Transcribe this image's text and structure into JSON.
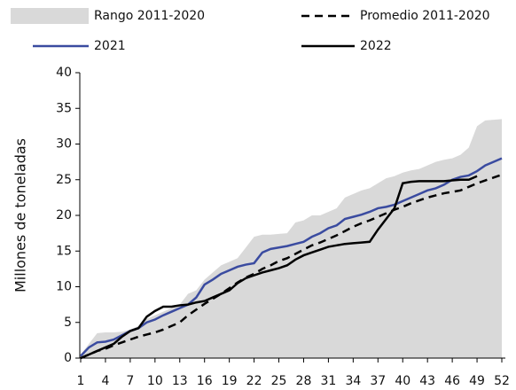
{
  "chart_data": {
    "type": "line",
    "y_label": "Millones de toneladas",
    "x": [
      1,
      2,
      3,
      4,
      5,
      6,
      7,
      8,
      9,
      10,
      11,
      12,
      13,
      14,
      15,
      16,
      17,
      18,
      19,
      20,
      21,
      22,
      23,
      24,
      25,
      26,
      27,
      28,
      29,
      30,
      31,
      32,
      33,
      34,
      35,
      36,
      37,
      38,
      39,
      40,
      41,
      42,
      43,
      44,
      45,
      46,
      47,
      48,
      49,
      50,
      51,
      52
    ],
    "xlim": [
      1,
      52
    ],
    "xticks": [
      1,
      4,
      7,
      10,
      13,
      16,
      19,
      22,
      25,
      28,
      31,
      34,
      37,
      40,
      43,
      46,
      49,
      52
    ],
    "ylim": [
      0,
      40
    ],
    "yticks": [
      0,
      5,
      10,
      15,
      20,
      25,
      30,
      35,
      40
    ],
    "series": [
      {
        "name": "Rango 2011-2020",
        "kind": "area",
        "color": "#d9d9d9",
        "values": [
          0.5,
          2,
          3.5,
          3.6,
          3.6,
          3.7,
          4,
          4.5,
          5.5,
          6,
          6.5,
          7,
          7.5,
          9,
          9.5,
          11,
          12,
          13,
          13.5,
          14,
          15.5,
          17,
          17.3,
          17.3,
          17.4,
          17.5,
          19,
          19.3,
          20,
          20,
          20.5,
          21,
          22.5,
          23,
          23.5,
          23.8,
          24.5,
          25.2,
          25.5,
          26,
          26.3,
          26.5,
          27,
          27.5,
          27.8,
          28,
          28.5,
          29.5,
          32.5,
          33.3,
          33.4,
          33.5
        ]
      },
      {
        "name": "Promedio 2011-2020",
        "kind": "line",
        "dashed": true,
        "color": "#000000",
        "values": [
          0,
          0.5,
          1,
          1.3,
          1.8,
          2.2,
          2.6,
          3,
          3.3,
          3.6,
          4,
          4.5,
          5,
          6,
          6.8,
          7.6,
          8.3,
          9,
          9.8,
          10.6,
          11.3,
          11.8,
          12.5,
          13,
          13.6,
          14,
          14.6,
          15.2,
          15.8,
          16.2,
          16.7,
          17.2,
          17.8,
          18.4,
          18.9,
          19.3,
          19.8,
          20.3,
          20.8,
          21.2,
          21.7,
          22.1,
          22.5,
          22.8,
          23.1,
          23.3,
          23.5,
          24,
          24.5,
          24.9,
          25.3,
          25.7
        ]
      },
      {
        "name": "2021",
        "kind": "line",
        "dashed": false,
        "color": "#3a4ba0",
        "values": [
          0.3,
          1.5,
          2.2,
          2.3,
          2.6,
          3.2,
          3.8,
          4.2,
          5,
          5.4,
          6,
          6.5,
          7,
          7.5,
          8.5,
          10.3,
          11,
          11.8,
          12.3,
          12.8,
          13.1,
          13.3,
          14.8,
          15.3,
          15.5,
          15.7,
          16,
          16.3,
          17,
          17.5,
          18.2,
          18.6,
          19.5,
          19.8,
          20.1,
          20.5,
          21,
          21.2,
          21.5,
          22,
          22.5,
          23,
          23.5,
          23.8,
          24.3,
          25,
          25.4,
          25.6,
          26.2,
          27,
          27.5,
          28
        ]
      },
      {
        "name": "2022",
        "kind": "line",
        "dashed": false,
        "color": "#000000",
        "values": [
          0,
          0.5,
          1,
          1.5,
          2,
          3,
          3.8,
          4.2,
          5.8,
          6.6,
          7.2,
          7.2,
          7.4,
          7.5,
          7.8,
          8,
          8.5,
          9,
          9.5,
          10.5,
          11.2,
          11.6,
          12,
          12.3,
          12.6,
          13,
          13.8,
          14.4,
          14.8,
          15.2,
          15.6,
          15.8,
          16,
          16.1,
          16.2,
          16.3,
          18,
          19.5,
          21,
          24.5,
          24.7,
          24.8,
          24.8,
          24.8,
          24.8,
          24.9,
          25,
          25,
          25.5,
          null,
          null,
          null
        ]
      }
    ]
  }
}
